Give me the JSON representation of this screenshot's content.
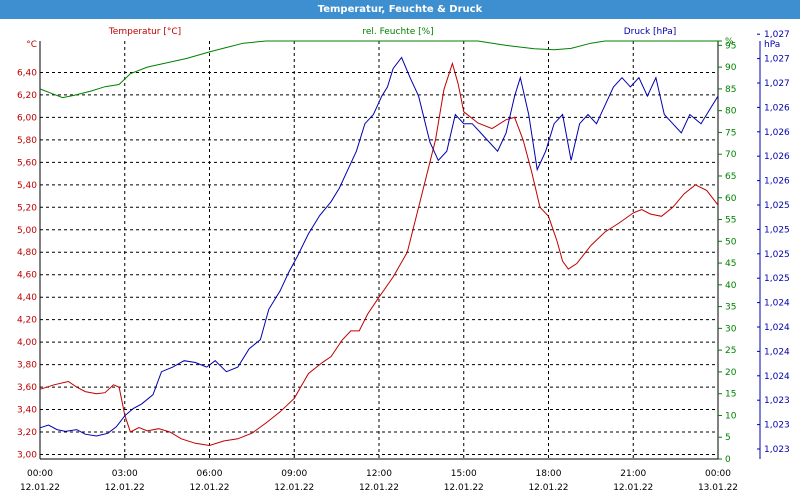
{
  "window": {
    "title": "Temperatur, Feuchte & Druck"
  },
  "colors": {
    "temperature": "#c00000",
    "humidity": "#008000",
    "pressure": "#0000b0",
    "title_bar": "#3d8fd0",
    "grid": "#000000"
  },
  "chart_data": {
    "type": "line",
    "title": "Temperatur, Feuchte & Druck",
    "grid": true,
    "x_axis": {
      "ticks": [
        {
          "time": "00:00",
          "date": "12.01.22"
        },
        {
          "time": "03:00",
          "date": "12.01.22"
        },
        {
          "time": "06:00",
          "date": "12.01.22"
        },
        {
          "time": "09:00",
          "date": "12.01.22"
        },
        {
          "time": "12:00",
          "date": "12.01.22"
        },
        {
          "time": "15:00",
          "date": "12.01.22"
        },
        {
          "time": "18:00",
          "date": "12.01.22"
        },
        {
          "time": "21:00",
          "date": "12.01.22"
        },
        {
          "time": "00:00",
          "date": "13.01.22"
        }
      ],
      "range_hours": [
        0,
        24
      ]
    },
    "left_axis": {
      "label": "Temperatur [°C]",
      "unit": "°C",
      "range": [
        2.96,
        6.68
      ],
      "ticks": [
        "3,00",
        "3,20",
        "3,40",
        "3,60",
        "3,80",
        "4,00",
        "4,20",
        "4,40",
        "4,60",
        "4,80",
        "5,00",
        "5,20",
        "5,40",
        "5,60",
        "5,80",
        "6,00",
        "6,20",
        "6,40"
      ]
    },
    "middle_axis": {
      "label": "rel. Feuchte [%]",
      "unit": "%",
      "range": [
        0,
        96
      ],
      "ticks": [
        "0",
        "5",
        "10",
        "15",
        "20",
        "25",
        "30",
        "35",
        "40",
        "45",
        "50",
        "55",
        "60",
        "65",
        "70",
        "75",
        "80",
        "85",
        "90",
        "95",
        "%"
      ]
    },
    "right_axis": {
      "label": "Druck [hPa]",
      "unit": "hPa",
      "range": [
        1.02275,
        1.0273
      ],
      "ticks": [
        "1,023",
        "1,023",
        "1,023",
        "1,024",
        "1,024",
        "1,024",
        "1,024",
        "1,025",
        "1,025",
        "1,025",
        "1,025",
        "1,026",
        "1,026",
        "1,026",
        "1,026",
        "1,027",
        "1,027",
        "1,027"
      ]
    },
    "series": [
      {
        "name": "Temperatur [°C]",
        "axis": "left",
        "points": [
          [
            0,
            3.58
          ],
          [
            0.5,
            3.62
          ],
          [
            1.0,
            3.65
          ],
          [
            1.3,
            3.6
          ],
          [
            1.6,
            3.56
          ],
          [
            2.0,
            3.54
          ],
          [
            2.3,
            3.55
          ],
          [
            2.6,
            3.62
          ],
          [
            2.8,
            3.6
          ],
          [
            3.0,
            3.35
          ],
          [
            3.2,
            3.2
          ],
          [
            3.5,
            3.24
          ],
          [
            3.8,
            3.21
          ],
          [
            4.2,
            3.23
          ],
          [
            4.6,
            3.2
          ],
          [
            5.0,
            3.14
          ],
          [
            5.5,
            3.1
          ],
          [
            6.0,
            3.08
          ],
          [
            6.5,
            3.12
          ],
          [
            7.0,
            3.14
          ],
          [
            7.5,
            3.19
          ],
          [
            8.0,
            3.28
          ],
          [
            8.5,
            3.38
          ],
          [
            9.0,
            3.5
          ],
          [
            9.5,
            3.72
          ],
          [
            10.0,
            3.82
          ],
          [
            10.3,
            3.87
          ],
          [
            10.7,
            4.02
          ],
          [
            11.0,
            4.1
          ],
          [
            11.3,
            4.1
          ],
          [
            11.6,
            4.25
          ],
          [
            12.0,
            4.4
          ],
          [
            12.5,
            4.58
          ],
          [
            13.0,
            4.8
          ],
          [
            13.5,
            5.3
          ],
          [
            14.0,
            5.8
          ],
          [
            14.3,
            6.25
          ],
          [
            14.6,
            6.48
          ],
          [
            14.8,
            6.3
          ],
          [
            15.0,
            6.05
          ],
          [
            15.5,
            5.95
          ],
          [
            16.0,
            5.9
          ],
          [
            16.5,
            5.98
          ],
          [
            16.8,
            6.0
          ],
          [
            17.1,
            5.8
          ],
          [
            17.4,
            5.52
          ],
          [
            17.7,
            5.2
          ],
          [
            18.0,
            5.12
          ],
          [
            18.3,
            4.9
          ],
          [
            18.5,
            4.72
          ],
          [
            18.7,
            4.65
          ],
          [
            19.0,
            4.7
          ],
          [
            19.5,
            4.86
          ],
          [
            20.0,
            4.98
          ],
          [
            20.5,
            5.06
          ],
          [
            21.0,
            5.15
          ],
          [
            21.3,
            5.18
          ],
          [
            21.6,
            5.14
          ],
          [
            22.0,
            5.12
          ],
          [
            22.4,
            5.2
          ],
          [
            22.8,
            5.32
          ],
          [
            23.2,
            5.4
          ],
          [
            23.6,
            5.35
          ],
          [
            24.0,
            5.22
          ]
        ]
      },
      {
        "name": "rel. Feuchte [%]",
        "axis": "middle",
        "points": [
          [
            0,
            85
          ],
          [
            0.4,
            84
          ],
          [
            0.8,
            83
          ],
          [
            1.2,
            83.5
          ],
          [
            1.8,
            84.5
          ],
          [
            2.3,
            85.5
          ],
          [
            2.8,
            86
          ],
          [
            3.2,
            88.5
          ],
          [
            3.8,
            90
          ],
          [
            4.5,
            91
          ],
          [
            5.2,
            92
          ],
          [
            6.0,
            93.5
          ],
          [
            6.6,
            94.5
          ],
          [
            7.2,
            95.5
          ],
          [
            8.0,
            96
          ],
          [
            8.6,
            96.6
          ],
          [
            9.0,
            96.8
          ],
          [
            9.5,
            97.5
          ],
          [
            14.5,
            97.5
          ],
          [
            15.0,
            96.8
          ],
          [
            15.5,
            96.3
          ],
          [
            16.5,
            95
          ],
          [
            17.5,
            94.2
          ],
          [
            18.2,
            94.0
          ],
          [
            18.8,
            94.3
          ],
          [
            19.5,
            95.5
          ],
          [
            20.0,
            96.3
          ],
          [
            20.5,
            97.5
          ],
          [
            24.0,
            97.5
          ]
        ]
      },
      {
        "name": "Druck [hPa]",
        "axis": "right",
        "points": [
          [
            0,
            1.02309
          ],
          [
            0.3,
            1.02312
          ],
          [
            0.6,
            1.02307
          ],
          [
            0.9,
            1.02305
          ],
          [
            1.3,
            1.02307
          ],
          [
            1.6,
            1.02302
          ],
          [
            2.0,
            1.023
          ],
          [
            2.4,
            1.02303
          ],
          [
            2.7,
            1.0231
          ],
          [
            3.0,
            1.02322
          ],
          [
            3.3,
            1.0233
          ],
          [
            3.6,
            1.02335
          ],
          [
            4.0,
            1.02345
          ],
          [
            4.3,
            1.0237
          ],
          [
            4.7,
            1.02375
          ],
          [
            5.1,
            1.02382
          ],
          [
            5.5,
            1.0238
          ],
          [
            5.9,
            1.02375
          ],
          [
            6.2,
            1.02382
          ],
          [
            6.6,
            1.0237
          ],
          [
            7.0,
            1.02375
          ],
          [
            7.4,
            1.02395
          ],
          [
            7.8,
            1.02405
          ],
          [
            8.1,
            1.02438
          ],
          [
            8.5,
            1.02458
          ],
          [
            8.8,
            1.02478
          ],
          [
            9.1,
            1.02495
          ],
          [
            9.5,
            1.0252
          ],
          [
            9.9,
            1.0254
          ],
          [
            10.3,
            1.02555
          ],
          [
            10.6,
            1.0257
          ],
          [
            10.9,
            1.0259
          ],
          [
            11.2,
            1.0261
          ],
          [
            11.5,
            1.0264
          ],
          [
            11.8,
            1.0265
          ],
          [
            12.1,
            1.0267
          ],
          [
            12.3,
            1.0268
          ],
          [
            12.5,
            1.027
          ],
          [
            12.8,
            1.02712
          ],
          [
            13.1,
            1.0269
          ],
          [
            13.4,
            1.0267
          ],
          [
            13.8,
            1.0262
          ],
          [
            14.1,
            1.026
          ],
          [
            14.4,
            1.0261
          ],
          [
            14.7,
            1.0265
          ],
          [
            15.0,
            1.0264
          ],
          [
            15.3,
            1.0264
          ],
          [
            15.6,
            1.0263
          ],
          [
            15.9,
            1.0262
          ],
          [
            16.2,
            1.0261
          ],
          [
            16.5,
            1.0263
          ],
          [
            16.8,
            1.0267
          ],
          [
            17.0,
            1.0269
          ],
          [
            17.3,
            1.0265
          ],
          [
            17.6,
            1.0259
          ],
          [
            17.9,
            1.0261
          ],
          [
            18.2,
            1.0264
          ],
          [
            18.5,
            1.0265
          ],
          [
            18.8,
            1.026
          ],
          [
            19.1,
            1.0264
          ],
          [
            19.4,
            1.0265
          ],
          [
            19.7,
            1.0264
          ],
          [
            20.0,
            1.0266
          ],
          [
            20.3,
            1.0268
          ],
          [
            20.6,
            1.0269
          ],
          [
            20.9,
            1.0268
          ],
          [
            21.2,
            1.0269
          ],
          [
            21.5,
            1.0267
          ],
          [
            21.8,
            1.0269
          ],
          [
            22.1,
            1.0265
          ],
          [
            22.4,
            1.0264
          ],
          [
            22.7,
            1.0263
          ],
          [
            23.0,
            1.0265
          ],
          [
            23.4,
            1.0264
          ],
          [
            23.7,
            1.02655
          ],
          [
            24.0,
            1.0267
          ]
        ]
      }
    ]
  }
}
